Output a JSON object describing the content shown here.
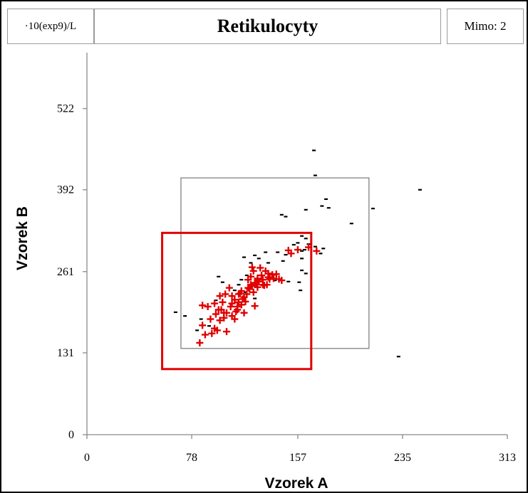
{
  "header": {
    "unit": "·10(exp9)/L",
    "title": "Retikulocyty",
    "mimo": "Mimo: 2"
  },
  "chart_data": {
    "type": "scatter",
    "title": "Retikulocyty",
    "xlabel": "Vzorek A",
    "ylabel": "Vzorek B",
    "xlim": [
      0,
      313
    ],
    "ylim": [
      0,
      600
    ],
    "xticks": [
      "0",
      "78",
      "157",
      "235",
      "313"
    ],
    "yticks": [
      "0",
      "131",
      "261",
      "392",
      "522"
    ],
    "colors": {
      "black_points": "#000000",
      "red_points": "#e00000",
      "red_box": "#e00000",
      "gray_box": "#777777"
    },
    "rectangles": [
      {
        "name": "outer-limit",
        "color": "gray",
        "x": [
          70,
          210
        ],
        "y": [
          138,
          411
        ]
      },
      {
        "name": "inner-limit",
        "color": "red",
        "x": [
          56,
          167
        ],
        "y": [
          105,
          323
        ]
      }
    ],
    "series": [
      {
        "marker": "dash",
        "color": "black",
        "points": [
          [
            169,
            455
          ],
          [
            170,
            415
          ],
          [
            248,
            392
          ],
          [
            178,
            377
          ],
          [
            175,
            366
          ],
          [
            180,
            363
          ],
          [
            163,
            360
          ],
          [
            213,
            362
          ],
          [
            145,
            352
          ],
          [
            148,
            349
          ],
          [
            197,
            338
          ],
          [
            160,
            318
          ],
          [
            163,
            314
          ],
          [
            165,
            305
          ],
          [
            154,
            304
          ],
          [
            170,
            301
          ],
          [
            176,
            298
          ],
          [
            162,
            296
          ],
          [
            174,
            290
          ],
          [
            160,
            294
          ],
          [
            142,
            292
          ],
          [
            148,
            288
          ],
          [
            133,
            292
          ],
          [
            125,
            287
          ],
          [
            128,
            282
          ],
          [
            117,
            284
          ],
          [
            122,
            275
          ],
          [
            135,
            275
          ],
          [
            146,
            278
          ],
          [
            160,
            282
          ],
          [
            163,
            258
          ],
          [
            128,
            255
          ],
          [
            136,
            252
          ],
          [
            140,
            247
          ],
          [
            150,
            245
          ],
          [
            158,
            244
          ],
          [
            115,
            248
          ],
          [
            119,
            255
          ],
          [
            113,
            240
          ],
          [
            121,
            235
          ],
          [
            98,
            253
          ],
          [
            101,
            244
          ],
          [
            110,
            231
          ],
          [
            118,
            228
          ],
          [
            159,
            231
          ],
          [
            125,
            218
          ],
          [
            96,
            215
          ],
          [
            107,
            210
          ],
          [
            73,
            190
          ],
          [
            85,
            185
          ],
          [
            91,
            174
          ],
          [
            82,
            167
          ],
          [
            232,
            125
          ],
          [
            66,
            196
          ],
          [
            157,
            307
          ],
          [
            160,
            263
          ]
        ]
      },
      {
        "marker": "plus",
        "color": "red",
        "points": [
          [
            84,
            147
          ],
          [
            88,
            160
          ],
          [
            86,
            175
          ],
          [
            93,
            162
          ],
          [
            95,
            170
          ],
          [
            99,
            183
          ],
          [
            92,
            185
          ],
          [
            96,
            193
          ],
          [
            98,
            200
          ],
          [
            102,
            187
          ],
          [
            104,
            195
          ],
          [
            108,
            190
          ],
          [
            112,
            200
          ],
          [
            115,
            208
          ],
          [
            101,
            212
          ],
          [
            107,
            205
          ],
          [
            110,
            216
          ],
          [
            113,
            212
          ],
          [
            117,
            220
          ],
          [
            119,
            225
          ],
          [
            113,
            225
          ],
          [
            121,
            233
          ],
          [
            123,
            238
          ],
          [
            115,
            230
          ],
          [
            125,
            243
          ],
          [
            127,
            250
          ],
          [
            130,
            255
          ],
          [
            133,
            262
          ],
          [
            135,
            258
          ],
          [
            129,
            267
          ],
          [
            123,
            268
          ],
          [
            128,
            245
          ],
          [
            131,
            240
          ],
          [
            138,
            256
          ],
          [
            141,
            257
          ],
          [
            143,
            249
          ],
          [
            145,
            247
          ],
          [
            136,
            249
          ],
          [
            139,
            250
          ],
          [
            124,
            262
          ],
          [
            120,
            248
          ],
          [
            122,
            253
          ],
          [
            127,
            236
          ],
          [
            132,
            239
          ],
          [
            134,
            240
          ],
          [
            118,
            213
          ],
          [
            103,
            225
          ],
          [
            108,
            222
          ],
          [
            99,
            222
          ],
          [
            95,
            210
          ],
          [
            90,
            205
          ],
          [
            106,
            235
          ],
          [
            111,
            197
          ],
          [
            117,
            195
          ],
          [
            124,
            228
          ],
          [
            150,
            295
          ],
          [
            157,
            296
          ],
          [
            165,
            300
          ],
          [
            171,
            294
          ],
          [
            152,
            290
          ],
          [
            102,
            195
          ],
          [
            104,
            165
          ],
          [
            97,
            167
          ],
          [
            110,
            185
          ],
          [
            86,
            207
          ],
          [
            125,
            206
          ],
          [
            100,
            200
          ],
          [
            108,
            210
          ],
          [
            114,
            226
          ],
          [
            120,
            235
          ],
          [
            126,
            243
          ],
          [
            116,
            217
          ],
          [
            112,
            205
          ],
          [
            122,
            240
          ],
          [
            131,
            248
          ],
          [
            135,
            252
          ]
        ]
      }
    ]
  }
}
